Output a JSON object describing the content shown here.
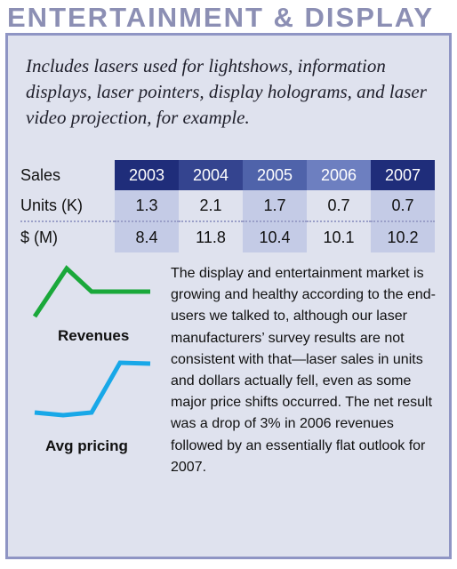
{
  "header": {
    "title": "ENTERTAINMENT & DISPLAY"
  },
  "intro": "Includes lasers used for lightshows, information displays, laser pointers, display holograms, and laser video projection, for example.",
  "table": {
    "corner_label": "Sales",
    "years": [
      "2003",
      "2004",
      "2005",
      "2006",
      "2007"
    ],
    "rows": [
      {
        "label": "Units (K)",
        "values": [
          "1.3",
          "2.1",
          "1.7",
          "0.7",
          "0.7"
        ]
      },
      {
        "label": "$ (M)",
        "values": [
          "8.4",
          "11.8",
          "10.4",
          "10.1",
          "10.2"
        ]
      }
    ]
  },
  "trends": {
    "revenues_label": "Revenues",
    "revenues_color": "#1aa83a",
    "pricing_label": "Avg pricing",
    "pricing_color": "#18a8e8"
  },
  "body": "The display and entertainment market is growing and healthy according to the end-users we talked to, although our laser manufacturers’ survey results are not consistent with that—laser sales in units and dollars actually fell, even as some major price shifts occurred. The net result was a drop of 3% in 2006 revenues followed by an essentially flat outlook for 2007."
}
